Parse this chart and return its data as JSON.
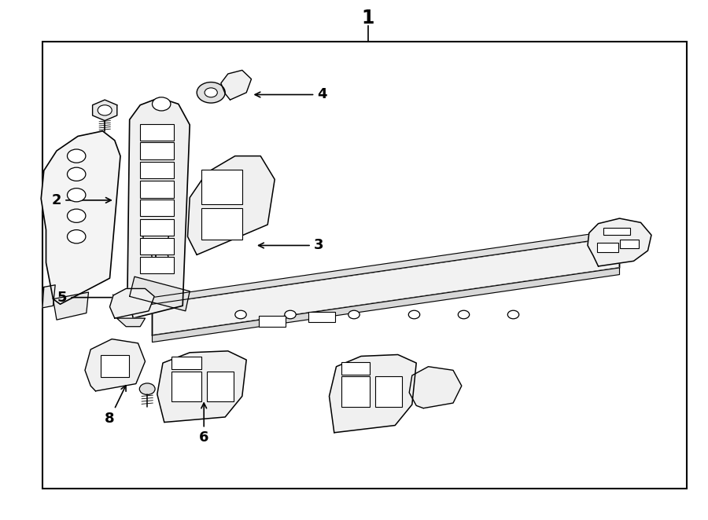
{
  "background_color": "#ffffff",
  "border_color": "#000000",
  "line_color": "#000000",
  "label_color": "#000000",
  "figsize": [
    9.0,
    6.62
  ],
  "dpi": 100,
  "border": [
    0.06,
    0.06,
    0.97,
    0.92
  ]
}
